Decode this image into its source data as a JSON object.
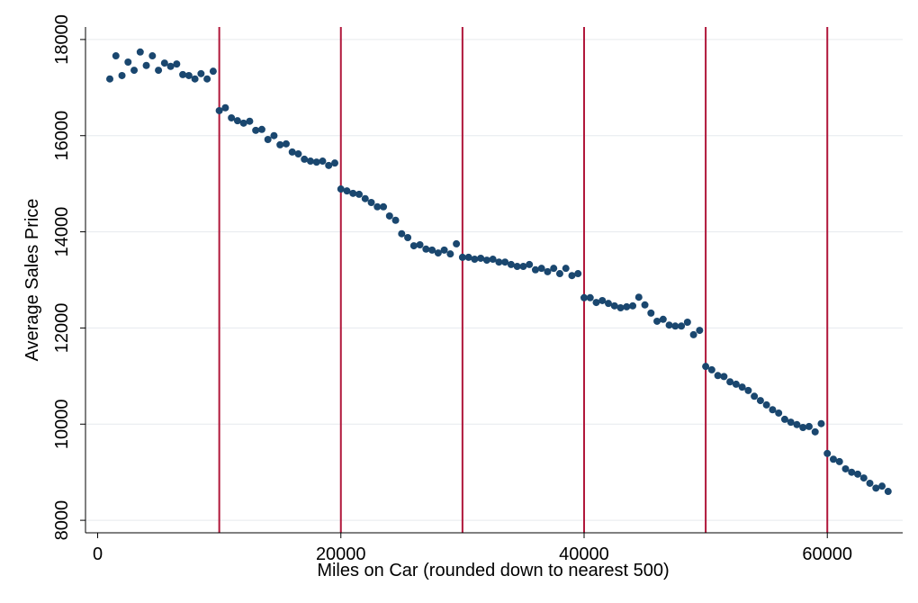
{
  "chart_data": {
    "type": "scatter",
    "x_label": "Miles on Car (rounded down to nearest 500)",
    "y_label": "Average Sales Price",
    "xlim": [
      -1000,
      66200
    ],
    "ylim": [
      7740,
      18260
    ],
    "xticks": [
      0,
      20000,
      40000,
      60000
    ],
    "yticks": [
      8000,
      10000,
      12000,
      14000,
      16000,
      18000
    ],
    "grid": true,
    "color": "#1a476f",
    "vlines": [
      10000,
      20000,
      30000,
      40000,
      50000,
      60000
    ],
    "vline_color": "#b0163a",
    "x": [
      1000,
      1500,
      2000,
      2500,
      3000,
      3500,
      4000,
      4500,
      5000,
      5500,
      6000,
      6500,
      7000,
      7500,
      8000,
      8500,
      9000,
      9500,
      10000,
      10500,
      11000,
      11500,
      12000,
      12500,
      13000,
      13500,
      14000,
      14500,
      15000,
      15500,
      16000,
      16500,
      17000,
      17500,
      18000,
      18500,
      19000,
      19500,
      20000,
      20500,
      21000,
      21500,
      22000,
      22500,
      23000,
      23500,
      24000,
      24500,
      25000,
      25500,
      26000,
      26500,
      27000,
      27500,
      28000,
      28500,
      29000,
      29500,
      30000,
      30500,
      31000,
      31500,
      32000,
      32500,
      33000,
      33500,
      34000,
      34500,
      35000,
      35500,
      36000,
      36500,
      37000,
      37500,
      38000,
      38500,
      39000,
      39500,
      40000,
      40500,
      41000,
      41500,
      42000,
      42500,
      43000,
      43500,
      44000,
      44500,
      45000,
      45500,
      46000,
      46500,
      47000,
      47500,
      48000,
      48500,
      49000,
      49500,
      50000,
      50500,
      51000,
      51500,
      52000,
      52500,
      53000,
      53500,
      54000,
      54500,
      55000,
      55500,
      56000,
      56500,
      57000,
      57500,
      58000,
      58500,
      59000,
      59500,
      60000,
      60500,
      61000,
      61500,
      62000,
      62500,
      63000,
      63500,
      64000,
      64500,
      65000
    ],
    "values": [
      17180,
      17660,
      17250,
      17530,
      17360,
      17740,
      17460,
      17660,
      17360,
      17510,
      17440,
      17490,
      17270,
      17250,
      17180,
      17290,
      17180,
      17340,
      16520,
      16580,
      16370,
      16310,
      16260,
      16300,
      16110,
      16130,
      15920,
      16000,
      15810,
      15830,
      15660,
      15620,
      15510,
      15470,
      15450,
      15470,
      15380,
      15430,
      14890,
      14850,
      14800,
      14780,
      14690,
      14610,
      14520,
      14520,
      14330,
      14240,
      13960,
      13880,
      13710,
      13730,
      13640,
      13620,
      13560,
      13620,
      13540,
      13750,
      13470,
      13470,
      13430,
      13450,
      13410,
      13430,
      13370,
      13370,
      13320,
      13280,
      13280,
      13320,
      13210,
      13240,
      13170,
      13240,
      13130,
      13240,
      13090,
      13130,
      12630,
      12630,
      12530,
      12570,
      12510,
      12460,
      12420,
      12440,
      12460,
      12640,
      12480,
      12310,
      12140,
      12180,
      12060,
      12040,
      12040,
      12120,
      11860,
      11950,
      11200,
      11130,
      11010,
      10990,
      10880,
      10830,
      10770,
      10700,
      10580,
      10490,
      10400,
      10300,
      10230,
      10100,
      10040,
      9990,
      9930,
      9950,
      9840,
      10010,
      9390,
      9270,
      9220,
      9070,
      9000,
      8960,
      8880,
      8770,
      8670,
      8710,
      8600
    ]
  }
}
